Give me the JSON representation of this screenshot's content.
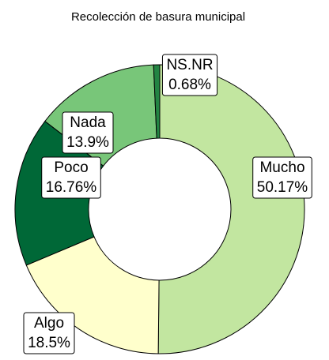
{
  "chart_data": {
    "type": "donut",
    "title": "Recolección de basura municipal",
    "categories": [
      "Mucho",
      "Algo",
      "Poco",
      "Nada",
      "NS.NR"
    ],
    "values": [
      50.17,
      18.5,
      16.76,
      13.9,
      0.68
    ],
    "value_labels": [
      "50.17%",
      "18.5%",
      "16.76%",
      "13.9%",
      "0.68%"
    ],
    "colors": [
      "#c2e6a0",
      "#ffffcc",
      "#006837",
      "#78c679",
      "#238443"
    ]
  }
}
